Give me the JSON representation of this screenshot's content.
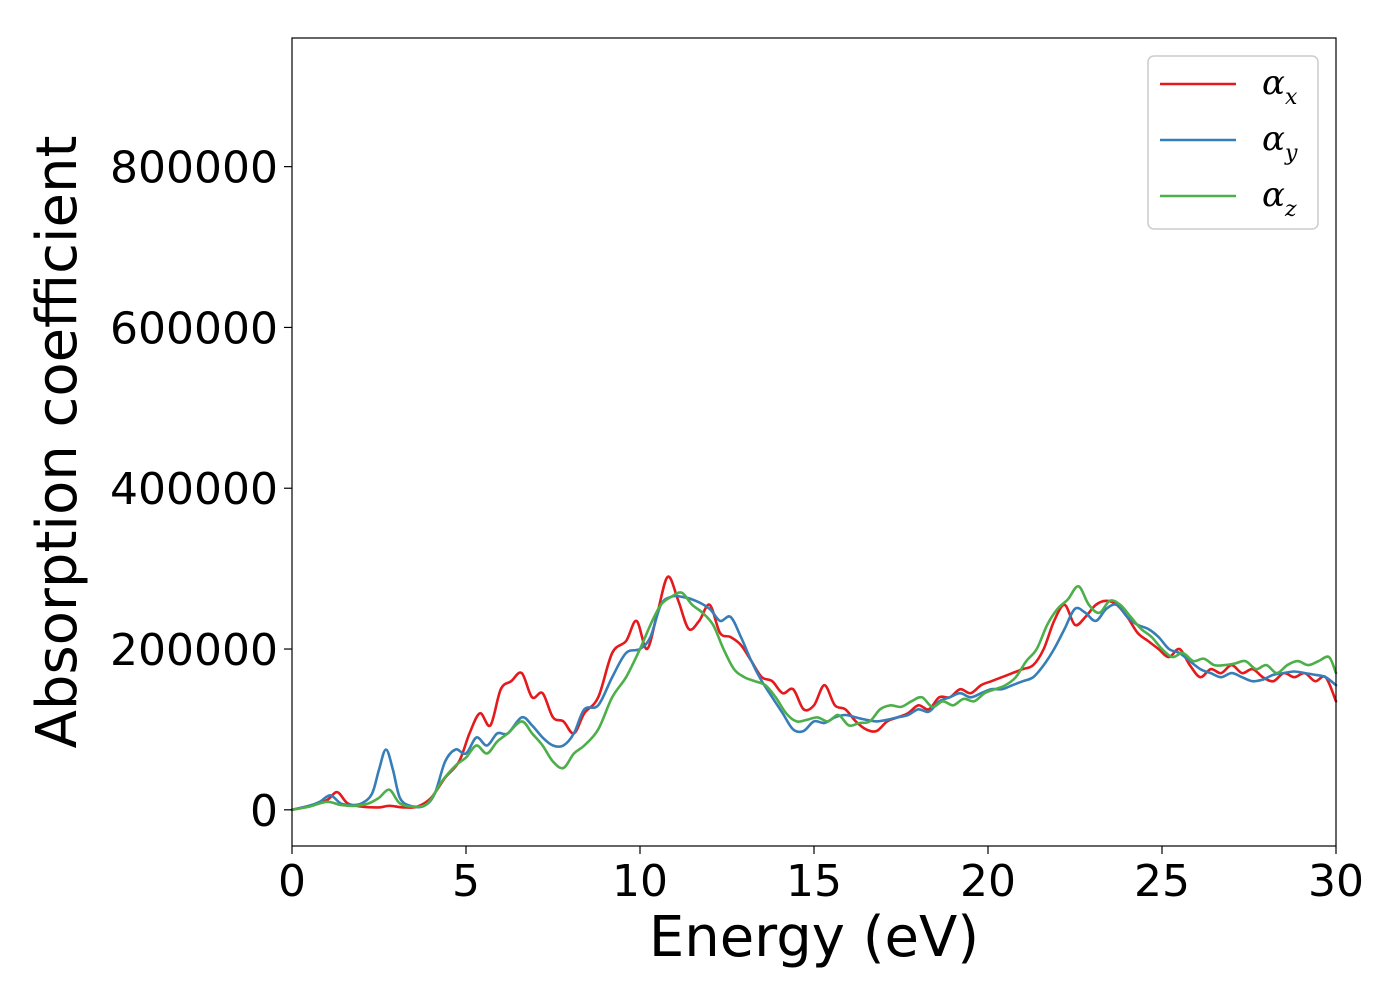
{
  "chart_data": {
    "type": "line",
    "xlabel": "Energy (eV)",
    "ylabel": "Absorption coefficient",
    "xlim": [
      0,
      30
    ],
    "ylim": [
      -45000,
      960000
    ],
    "xticks": [
      0,
      5,
      10,
      15,
      20,
      25,
      30
    ],
    "xtick_labels": [
      "0",
      "5",
      "10",
      "15",
      "20",
      "25",
      "30"
    ],
    "yticks": [
      0,
      200000,
      400000,
      600000,
      800000
    ],
    "ytick_labels": [
      "0",
      "200000",
      "400000",
      "600000",
      "800000"
    ],
    "grid": false,
    "legend": {
      "placement": "top-right"
    },
    "series": [
      {
        "name": "α",
        "name_sub": "x",
        "color": "#e41a1c",
        "x": [
          0,
          0.5,
          1.0,
          1.3,
          1.6,
          2.0,
          2.5,
          2.8,
          3.2,
          3.6,
          4.0,
          4.4,
          4.8,
          5.1,
          5.4,
          5.7,
          6.0,
          6.3,
          6.6,
          6.9,
          7.2,
          7.5,
          7.8,
          8.1,
          8.4,
          8.8,
          9.2,
          9.6,
          9.9,
          10.2,
          10.5,
          10.8,
          11.1,
          11.4,
          11.7,
          12.0,
          12.3,
          12.6,
          12.9,
          13.2,
          13.5,
          13.8,
          14.1,
          14.4,
          14.7,
          15.0,
          15.3,
          15.6,
          15.9,
          16.2,
          16.5,
          16.8,
          17.1,
          17.4,
          17.7,
          18.0,
          18.3,
          18.6,
          18.9,
          19.2,
          19.5,
          19.8,
          20.1,
          20.4,
          20.7,
          21.0,
          21.3,
          21.6,
          21.9,
          22.2,
          22.5,
          22.8,
          23.1,
          23.4,
          23.7,
          24.0,
          24.3,
          24.6,
          24.9,
          25.2,
          25.5,
          25.8,
          26.1,
          26.4,
          26.7,
          27.0,
          27.3,
          27.6,
          27.9,
          28.2,
          28.5,
          28.8,
          29.1,
          29.4,
          29.7,
          30.0
        ],
        "y": [
          0,
          5000,
          12000,
          22000,
          8000,
          4000,
          3000,
          5000,
          3000,
          4000,
          15000,
          40000,
          60000,
          95000,
          120000,
          105000,
          150000,
          160000,
          170000,
          140000,
          145000,
          115000,
          110000,
          95000,
          120000,
          140000,
          195000,
          210000,
          235000,
          200000,
          245000,
          290000,
          260000,
          225000,
          235000,
          255000,
          220000,
          215000,
          205000,
          185000,
          165000,
          160000,
          145000,
          150000,
          125000,
          130000,
          155000,
          130000,
          125000,
          110000,
          100000,
          98000,
          110000,
          115000,
          120000,
          130000,
          125000,
          140000,
          140000,
          150000,
          145000,
          155000,
          160000,
          165000,
          170000,
          175000,
          180000,
          200000,
          235000,
          255000,
          230000,
          240000,
          255000,
          260000,
          255000,
          240000,
          220000,
          210000,
          200000,
          190000,
          200000,
          180000,
          165000,
          175000,
          170000,
          180000,
          170000,
          175000,
          165000,
          160000,
          170000,
          165000,
          170000,
          160000,
          165000,
          135000
        ]
      },
      {
        "name": "α",
        "name_sub": "y",
        "color": "#377eb8",
        "x": [
          0,
          0.5,
          0.8,
          1.1,
          1.4,
          1.7,
          2.0,
          2.3,
          2.5,
          2.7,
          2.9,
          3.1,
          3.4,
          3.8,
          4.1,
          4.4,
          4.7,
          5.0,
          5.3,
          5.6,
          5.9,
          6.2,
          6.6,
          6.9,
          7.2,
          7.5,
          7.8,
          8.1,
          8.4,
          8.8,
          9.2,
          9.6,
          10.0,
          10.3,
          10.6,
          10.9,
          11.2,
          11.6,
          12.0,
          12.3,
          12.6,
          12.9,
          13.2,
          13.5,
          13.8,
          14.1,
          14.4,
          14.7,
          15.0,
          15.3,
          15.6,
          15.9,
          16.2,
          16.5,
          16.8,
          17.1,
          17.4,
          17.7,
          18.0,
          18.3,
          18.6,
          18.9,
          19.2,
          19.5,
          19.8,
          20.1,
          20.4,
          20.7,
          21.0,
          21.3,
          21.6,
          21.9,
          22.2,
          22.5,
          22.8,
          23.1,
          23.4,
          23.7,
          24.0,
          24.3,
          24.6,
          24.9,
          25.2,
          25.5,
          25.8,
          26.1,
          26.4,
          26.7,
          27.0,
          27.3,
          27.6,
          27.9,
          28.2,
          28.5,
          28.8,
          29.1,
          29.4,
          29.7,
          30.0
        ],
        "y": [
          0,
          5000,
          10000,
          18000,
          8000,
          6000,
          8000,
          20000,
          50000,
          75000,
          50000,
          15000,
          5000,
          5000,
          20000,
          60000,
          75000,
          70000,
          90000,
          80000,
          95000,
          95000,
          115000,
          105000,
          90000,
          80000,
          80000,
          95000,
          125000,
          130000,
          165000,
          195000,
          200000,
          215000,
          255000,
          265000,
          265000,
          260000,
          250000,
          235000,
          240000,
          215000,
          185000,
          160000,
          140000,
          120000,
          100000,
          98000,
          110000,
          108000,
          115000,
          118000,
          115000,
          112000,
          110000,
          112000,
          115000,
          118000,
          125000,
          122000,
          135000,
          140000,
          145000,
          140000,
          145000,
          150000,
          150000,
          155000,
          160000,
          165000,
          180000,
          200000,
          225000,
          250000,
          245000,
          235000,
          250000,
          255000,
          240000,
          230000,
          225000,
          215000,
          200000,
          195000,
          185000,
          175000,
          170000,
          165000,
          170000,
          165000,
          160000,
          162000,
          168000,
          170000,
          172000,
          170000,
          168000,
          165000,
          155000
        ]
      },
      {
        "name": "α",
        "name_sub": "z",
        "color": "#4daf4a",
        "x": [
          0,
          0.5,
          1.0,
          1.4,
          1.8,
          2.2,
          2.5,
          2.8,
          3.1,
          3.5,
          3.9,
          4.3,
          4.7,
          5.0,
          5.3,
          5.6,
          5.9,
          6.2,
          6.6,
          6.9,
          7.2,
          7.5,
          7.8,
          8.1,
          8.4,
          8.8,
          9.2,
          9.6,
          10.0,
          10.3,
          10.6,
          10.9,
          11.2,
          11.5,
          11.8,
          12.1,
          12.4,
          12.7,
          13.0,
          13.3,
          13.6,
          13.9,
          14.2,
          14.5,
          14.8,
          15.1,
          15.4,
          15.7,
          16.0,
          16.3,
          16.6,
          16.9,
          17.2,
          17.5,
          17.8,
          18.1,
          18.4,
          18.7,
          19.0,
          19.3,
          19.6,
          19.9,
          20.2,
          20.5,
          20.8,
          21.1,
          21.4,
          21.7,
          22.0,
          22.3,
          22.6,
          22.9,
          23.2,
          23.5,
          23.8,
          24.1,
          24.4,
          24.7,
          25.0,
          25.3,
          25.6,
          25.9,
          26.2,
          26.5,
          26.8,
          27.1,
          27.4,
          27.7,
          28.0,
          28.3,
          28.6,
          28.9,
          29.2,
          29.5,
          29.8,
          30.0
        ],
        "y": [
          0,
          4000,
          10000,
          6000,
          5000,
          8000,
          15000,
          25000,
          8000,
          4000,
          8000,
          35000,
          55000,
          65000,
          80000,
          70000,
          85000,
          95000,
          110000,
          95000,
          80000,
          60000,
          52000,
          70000,
          80000,
          100000,
          140000,
          165000,
          200000,
          230000,
          255000,
          265000,
          270000,
          255000,
          245000,
          230000,
          200000,
          175000,
          165000,
          160000,
          155000,
          140000,
          120000,
          110000,
          112000,
          115000,
          110000,
          118000,
          105000,
          108000,
          110000,
          125000,
          130000,
          128000,
          135000,
          140000,
          128000,
          135000,
          130000,
          138000,
          135000,
          145000,
          150000,
          155000,
          165000,
          185000,
          200000,
          230000,
          250000,
          262000,
          278000,
          255000,
          245000,
          260000,
          255000,
          240000,
          225000,
          215000,
          200000,
          190000,
          195000,
          185000,
          188000,
          180000,
          180000,
          182000,
          185000,
          175000,
          180000,
          170000,
          180000,
          185000,
          180000,
          185000,
          190000,
          170000
        ]
      }
    ]
  }
}
